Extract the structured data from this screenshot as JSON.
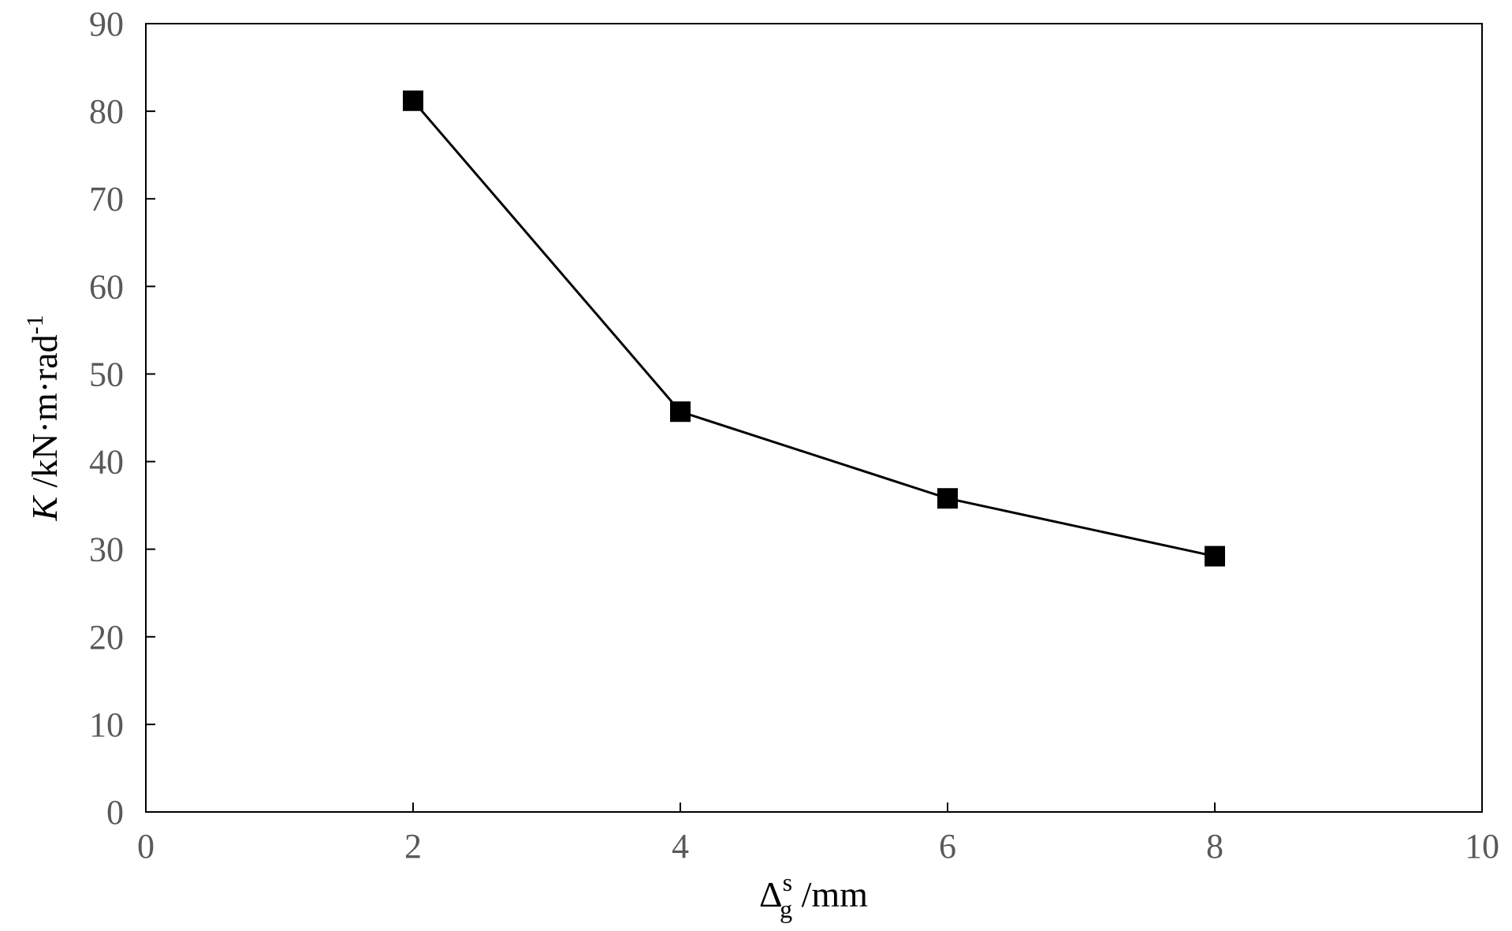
{
  "chart_data": {
    "type": "line",
    "title": "",
    "xlabel": "Δ_g^s /mm",
    "ylabel": "K /kN·m·rad^-1",
    "xlabel_parts": {
      "symbol": "Δ",
      "subscript": "g",
      "superscript": "s",
      "unit": " /mm"
    },
    "ylabel_parts": {
      "symbol": "K",
      "unit": " /kN·m·rad",
      "exponent": "-1"
    },
    "xlim": [
      0,
      10
    ],
    "ylim": [
      0,
      90
    ],
    "xticks": [
      0,
      2,
      4,
      6,
      8,
      10
    ],
    "yticks": [
      0,
      10,
      20,
      30,
      40,
      50,
      60,
      70,
      80,
      90
    ],
    "grid": false,
    "legend": "none",
    "series": [
      {
        "x": [
          2,
          4,
          6,
          8
        ],
        "values": [
          81.2,
          45.7,
          35.8,
          29.2
        ],
        "marker": "square",
        "color": "#000000"
      }
    ]
  }
}
